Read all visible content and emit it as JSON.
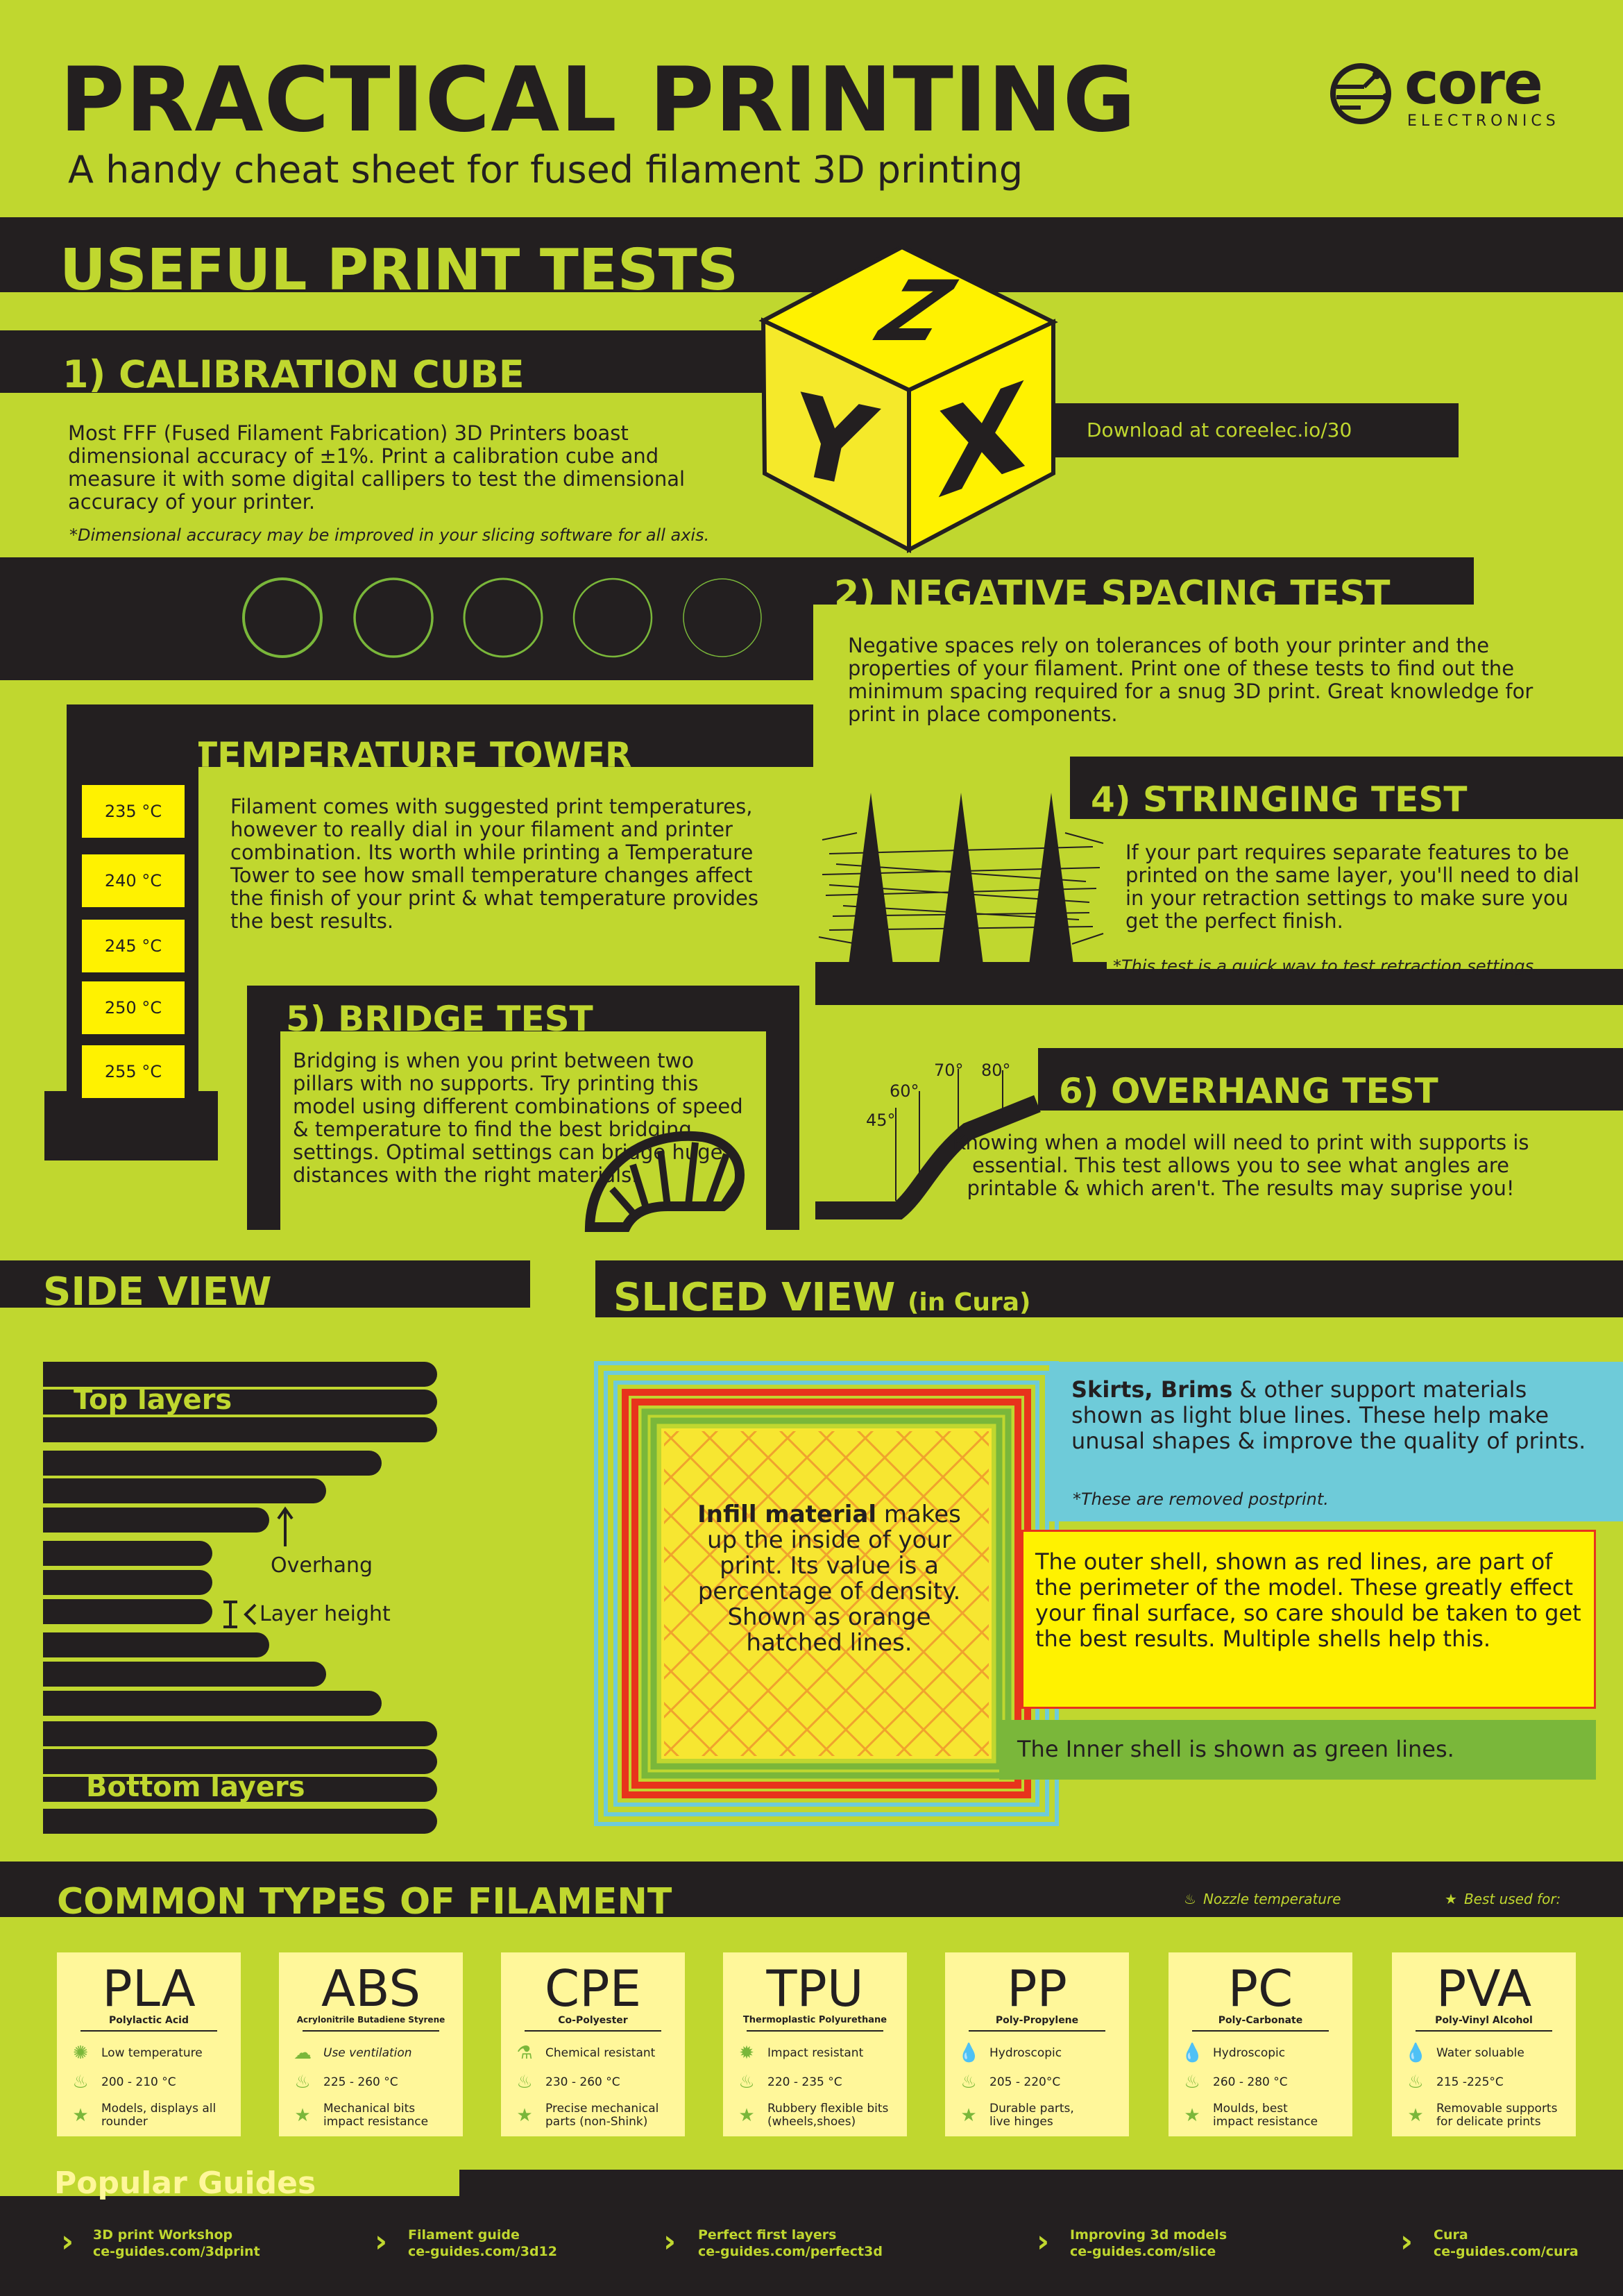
{
  "header": {
    "title": "PRACTICAL PRINTING",
    "subtitle": "A handy cheat sheet for fused filament 3D printing",
    "logo_word": "core",
    "logo_sub": "ELECTRONICS"
  },
  "print_tests": {
    "section_title": "USEFUL PRINT TESTS",
    "calibration": {
      "title": "1) CALIBRATION CUBE",
      "body": "Most FFF (Fused Filament Fabrication) 3D Printers boast dimensional accuracy of ±1%. Print a calibration cube and measure it with some digital callipers to test the dimensional accuracy of your printer.",
      "note": "*Dimensional accuracy may be improved in your slicing software for all axis.",
      "download": "Download at coreelec.io/30",
      "cube_letters": [
        "Z",
        "Y",
        "X"
      ]
    },
    "negative_spacing": {
      "title": "2) NEGATIVE SPACING TEST",
      "body": "Negative spaces rely on tolerances of both your printer and the properties of your filament. Print one of these tests to find out the minimum spacing required for a snug 3D print. Great knowledge for print in place components."
    },
    "temperature_tower": {
      "title": "3) TEMPERATURE TOWER",
      "body": "Filament comes with suggested print temperatures, however to really dial in your filament and printer combination. Its worth while printing a Temperature Tower to see how small temperature changes affect the finish of your print & what temperature provides the best results.",
      "temps": [
        "235 °C",
        "240 °C",
        "245 °C",
        "250 °C",
        "255 °C"
      ]
    },
    "stringing": {
      "title": "4) STRINGING TEST",
      "body": "If your part requires separate features to be printed on the same layer, you'll need to dial in your retraction settings to make sure you get the perfect finish.",
      "note": "*This test is a quick way to test retraction settings."
    },
    "bridge": {
      "title": "5) BRIDGE TEST",
      "body": "Bridging is when you print between two pillars with no supports. Try printing this model using different combinations of speed & temperature to find the best bridging settings. Optimal settings can bridge huge distances with the right materials."
    },
    "overhang": {
      "title": "6) OVERHANG TEST",
      "body": "Knowing when a model will need to print with supports is essential. This test allows you to see what angles are printable & which aren't. The results may suprise you!",
      "angles": [
        "45°",
        "60°",
        "70°",
        "80°"
      ]
    }
  },
  "side_view": {
    "title": "SIDE VIEW",
    "top_label": "Top layers",
    "overhang_label": "Overhang",
    "layer_label": "Layer height",
    "bottom_label": "Bottom layers"
  },
  "sliced_view": {
    "title": "SLICED VIEW",
    "title_suffix": "(in Cura)",
    "infill_bold": "Infill material",
    "infill_text": " makes up the inside of your print. Its value is a percentage of density. Shown as orange hatched lines.",
    "skirts_bold": "Skirts, Brims",
    "skirts_text": " & other support materials shown as light blue lines. These help make unusal shapes & improve the quality of prints.",
    "skirts_note": "*These are removed postprint.",
    "outer_text": "The outer shell, shown as red lines, are part of the perimeter of the model. These greatly effect your final surface, so care should be taken to get the best results. Multiple shells help this.",
    "inner_text": "The Inner shell is shown as green lines.",
    "colors": {
      "skirt": "#6ecbd9",
      "outer": "#e8331c",
      "inner": "#7ab73a",
      "infill": "#f7e631"
    }
  },
  "filaments": {
    "title": "COMMON TYPES OF FILAMENT",
    "legend_nozzle": "Nozzle temperature",
    "legend_best": "Best used for:",
    "cards": [
      {
        "name": "PLA",
        "full": "Polylactic Acid",
        "prop": "Low temperature",
        "prop_icon": "sun-icon",
        "temp": "200 - 210 °C",
        "best": "Models, displays all rounder"
      },
      {
        "name": "ABS",
        "full": "Acrylonitrile Butadiene Styrene",
        "prop": "Use ventilation",
        "prop_icon": "fumes-icon",
        "temp": "225 - 260 °C",
        "best": "Mechanical bits impact resistance"
      },
      {
        "name": "CPE",
        "full": "Co-Polyester",
        "prop": "Chemical resistant",
        "prop_icon": "flask-icon",
        "temp": "230 - 260 °C",
        "best": "Precise mechanical parts (non-Shink)"
      },
      {
        "name": "TPU",
        "full": "Thermoplastic Polyurethane",
        "prop": "Impact resistant",
        "prop_icon": "impact-icon",
        "temp": "220 - 235 °C",
        "best": "Rubbery flexible bits (wheels,shoes)"
      },
      {
        "name": "PP",
        "full": "Poly-Propylene",
        "prop": "Hydroscopic",
        "prop_icon": "droplet-icon",
        "temp": "205 - 220°C",
        "best": "Durable parts, live hinges"
      },
      {
        "name": "PC",
        "full": "Poly-Carbonate",
        "prop": "Hydroscopic",
        "prop_icon": "droplet-icon",
        "temp": "260 - 280 °C",
        "best": "Moulds, best impact resistance"
      },
      {
        "name": "PVA",
        "full": "Poly-Vinyl Alcohol",
        "prop": "Water soluable",
        "prop_icon": "droplet-icon",
        "temp": "215 -225°C",
        "best": "Removable supports for delicate prints"
      }
    ]
  },
  "guides": {
    "title": "Popular Guides",
    "items": [
      {
        "name": "3D print Workshop",
        "url": "ce-guides.com/3dprint"
      },
      {
        "name": "Filament guide",
        "url": "ce-guides.com/3d12"
      },
      {
        "name": "Perfect first layers",
        "url": "ce-guides.com/perfect3d"
      },
      {
        "name": "Improving 3d models",
        "url": "ce-guides.com/slice"
      },
      {
        "name": "Cura",
        "url": "ce-guides.com/cura"
      }
    ]
  }
}
